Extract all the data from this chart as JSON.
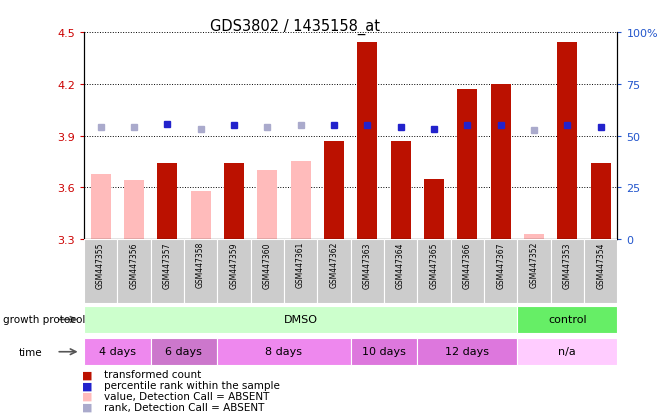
{
  "title": "GDS3802 / 1435158_at",
  "samples": [
    "GSM447355",
    "GSM447356",
    "GSM447357",
    "GSM447358",
    "GSM447359",
    "GSM447360",
    "GSM447361",
    "GSM447362",
    "GSM447363",
    "GSM447364",
    "GSM447365",
    "GSM447366",
    "GSM447367",
    "GSM447352",
    "GSM447353",
    "GSM447354"
  ],
  "bar_values": [
    3.68,
    3.64,
    3.74,
    3.58,
    3.74,
    3.7,
    3.75,
    3.87,
    4.44,
    3.87,
    3.65,
    4.17,
    4.2,
    3.33,
    4.44,
    3.74
  ],
  "bar_absent": [
    true,
    true,
    false,
    true,
    false,
    true,
    true,
    false,
    false,
    false,
    false,
    false,
    false,
    true,
    false,
    false
  ],
  "rank_values": [
    3.95,
    3.95,
    3.97,
    3.94,
    3.96,
    3.95,
    3.96,
    3.96,
    3.96,
    3.95,
    3.94,
    3.96,
    3.96,
    3.93,
    3.96,
    3.95
  ],
  "rank_absent": [
    true,
    true,
    false,
    true,
    false,
    true,
    true,
    false,
    false,
    false,
    false,
    false,
    false,
    true,
    false,
    false
  ],
  "ylim": [
    3.3,
    4.5
  ],
  "yticks": [
    3.3,
    3.6,
    3.9,
    4.2,
    4.5
  ],
  "right_yticks": [
    0,
    25,
    50,
    75,
    100
  ],
  "right_ylabels": [
    "0",
    "25",
    "50",
    "75",
    "100%"
  ],
  "bar_color_present": "#bb1100",
  "bar_color_absent": "#ffbbbb",
  "rank_color_present": "#2222cc",
  "rank_color_absent": "#aaaacc",
  "group_protocol": [
    {
      "label": "DMSO",
      "start": 0,
      "end": 12,
      "color": "#ccffcc"
    },
    {
      "label": "control",
      "start": 13,
      "end": 15,
      "color": "#66ee66"
    }
  ],
  "group_time": [
    {
      "label": "4 days",
      "start": 0,
      "end": 1,
      "color": "#ee88ee"
    },
    {
      "label": "6 days",
      "start": 2,
      "end": 3,
      "color": "#cc77cc"
    },
    {
      "label": "8 days",
      "start": 4,
      "end": 7,
      "color": "#ee88ee"
    },
    {
      "label": "10 days",
      "start": 8,
      "end": 9,
      "color": "#dd77dd"
    },
    {
      "label": "12 days",
      "start": 10,
      "end": 12,
      "color": "#dd77dd"
    },
    {
      "label": "n/a",
      "start": 13,
      "end": 15,
      "color": "#ffccff"
    }
  ],
  "legend_items": [
    {
      "label": "transformed count",
      "color": "#bb1100"
    },
    {
      "label": "percentile rank within the sample",
      "color": "#2222cc"
    },
    {
      "label": "value, Detection Call = ABSENT",
      "color": "#ffbbbb"
    },
    {
      "label": "rank, Detection Call = ABSENT",
      "color": "#aaaacc"
    }
  ]
}
